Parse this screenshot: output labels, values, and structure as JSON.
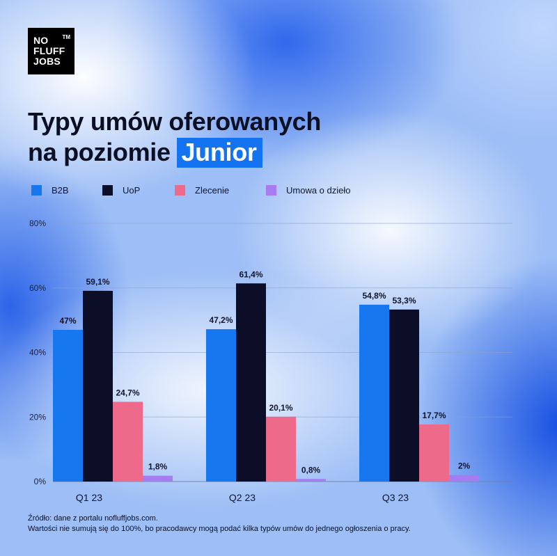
{
  "logo": {
    "lines": [
      "NO",
      "FLUFF",
      "JOBS"
    ],
    "tm": "TM"
  },
  "title": {
    "line1": "Typy umów oferowanych",
    "line2_prefix": "na poziomie",
    "line2_highlight": "Junior"
  },
  "footnote": {
    "line1": "Źródło: dane z portalu nofluffjobs.com.",
    "line2": "Wartości nie sumują się do 100%, bo pracodawcy mogą podać kilka typów umów do jednego ogłoszenia o pracy."
  },
  "colors": {
    "b2b": "#1677ee",
    "uop": "#0c0d26",
    "zlecenie": "#ee6a8a",
    "dzielo": "#a77cf3",
    "highlight": "#1473f0"
  },
  "chart_data": {
    "type": "bar",
    "categories": [
      "Q1 23",
      "Q2 23",
      "Q3 23"
    ],
    "series": [
      {
        "name": "B2B",
        "values": [
          47,
          47.2,
          54.8
        ],
        "labels": [
          "47%",
          "47,2%",
          "54,8%"
        ],
        "color": "#1677ee"
      },
      {
        "name": "UoP",
        "values": [
          59.1,
          61.4,
          53.3
        ],
        "labels": [
          "59,1%",
          "61,4%",
          "53,3%"
        ],
        "color": "#0c0d26"
      },
      {
        "name": "Zlecenie",
        "values": [
          24.7,
          20.1,
          17.7
        ],
        "labels": [
          "24,7%",
          "20,1%",
          "17,7%"
        ],
        "color": "#ee6a8a"
      },
      {
        "name": "Umowa o dzieło",
        "values": [
          1.8,
          0.8,
          2
        ],
        "labels": [
          "1,8%",
          "0,8%",
          "2%"
        ],
        "color": "#a77cf3"
      }
    ],
    "yticks": [
      "0%",
      "20%",
      "40%",
      "60%",
      "80%"
    ],
    "ylim": [
      0,
      80
    ],
    "grid": true,
    "legend": "top-left"
  }
}
